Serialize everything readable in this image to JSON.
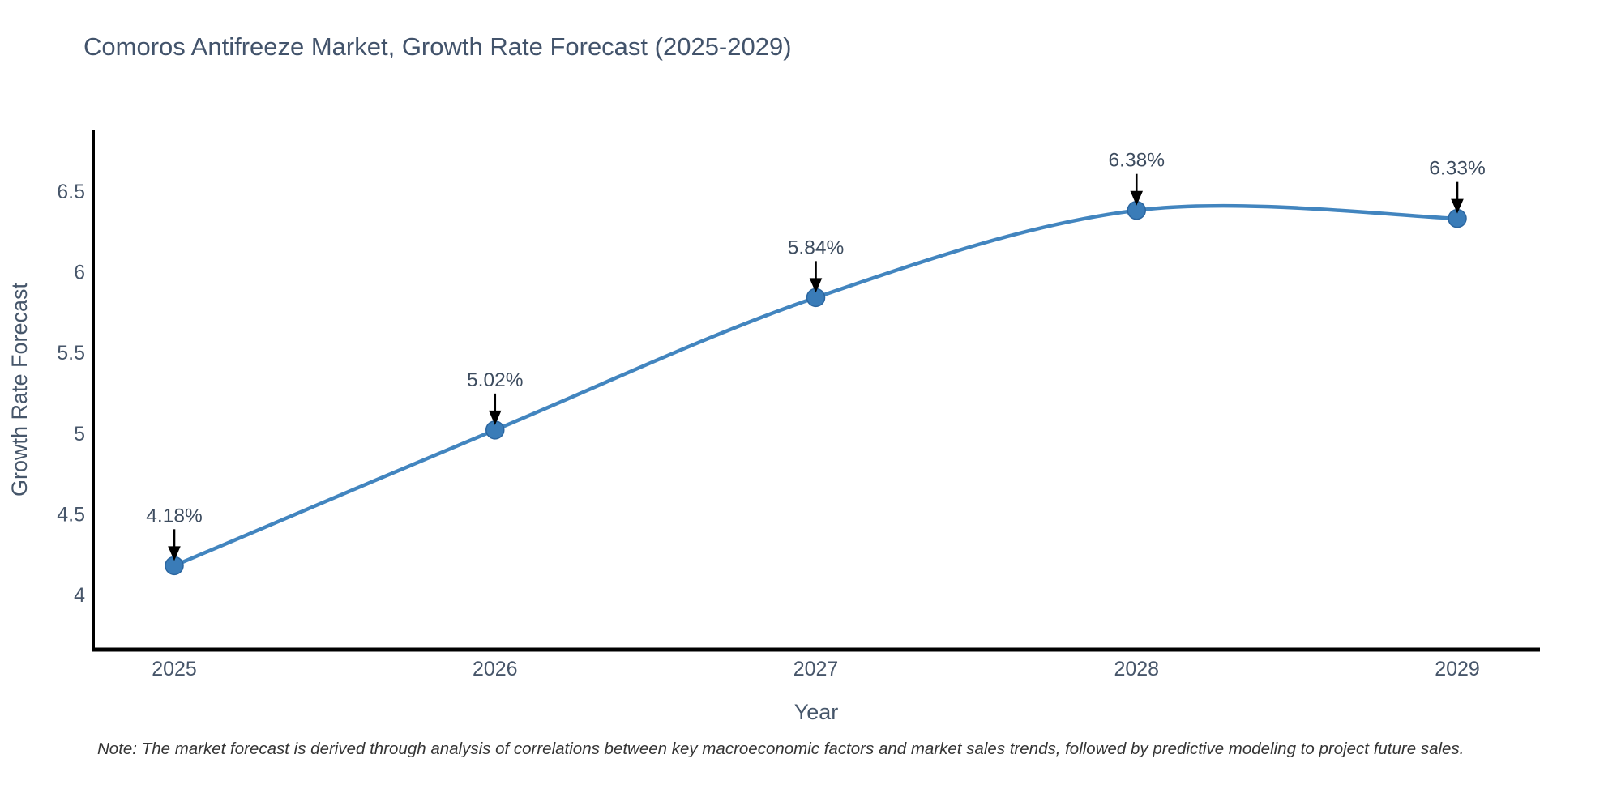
{
  "chart_data": {
    "type": "line",
    "title": "Comoros Antifreeze Market, Growth Rate Forecast (2025-2029)",
    "categories": [
      "2025",
      "2026",
      "2027",
      "2028",
      "2029"
    ],
    "values": [
      4.18,
      5.02,
      5.84,
      6.38,
      6.33
    ],
    "point_labels": [
      "4.18%",
      "5.02%",
      "5.84%",
      "6.38%",
      "6.33%"
    ],
    "series_name": "Growth Rate Forecast",
    "xlabel": "Year",
    "ylabel": "Growth Rate Forecast",
    "yticks": [
      4,
      4.5,
      5,
      5.5,
      6,
      6.5
    ],
    "ylim": [
      3.66,
      6.88
    ],
    "grid": false,
    "legend": "none",
    "line_shape": "spline",
    "annotation_style": "black-arrow-down-to-marker",
    "note": "Note: The market forecast is derived through analysis of correlations between key macroeconomic factors and market sales trends, followed by predictive modeling to project future sales.",
    "colors": {
      "line": "#4285bf",
      "marker_fill": "#3a7cb8",
      "marker_edge": "#2b66a0",
      "axis_line": "#000000",
      "tick_text": "#47566a",
      "annotation_text": "#3d4c5f",
      "arrow": "#000000",
      "title_text": "#42536b",
      "background": "#ffffff"
    }
  }
}
